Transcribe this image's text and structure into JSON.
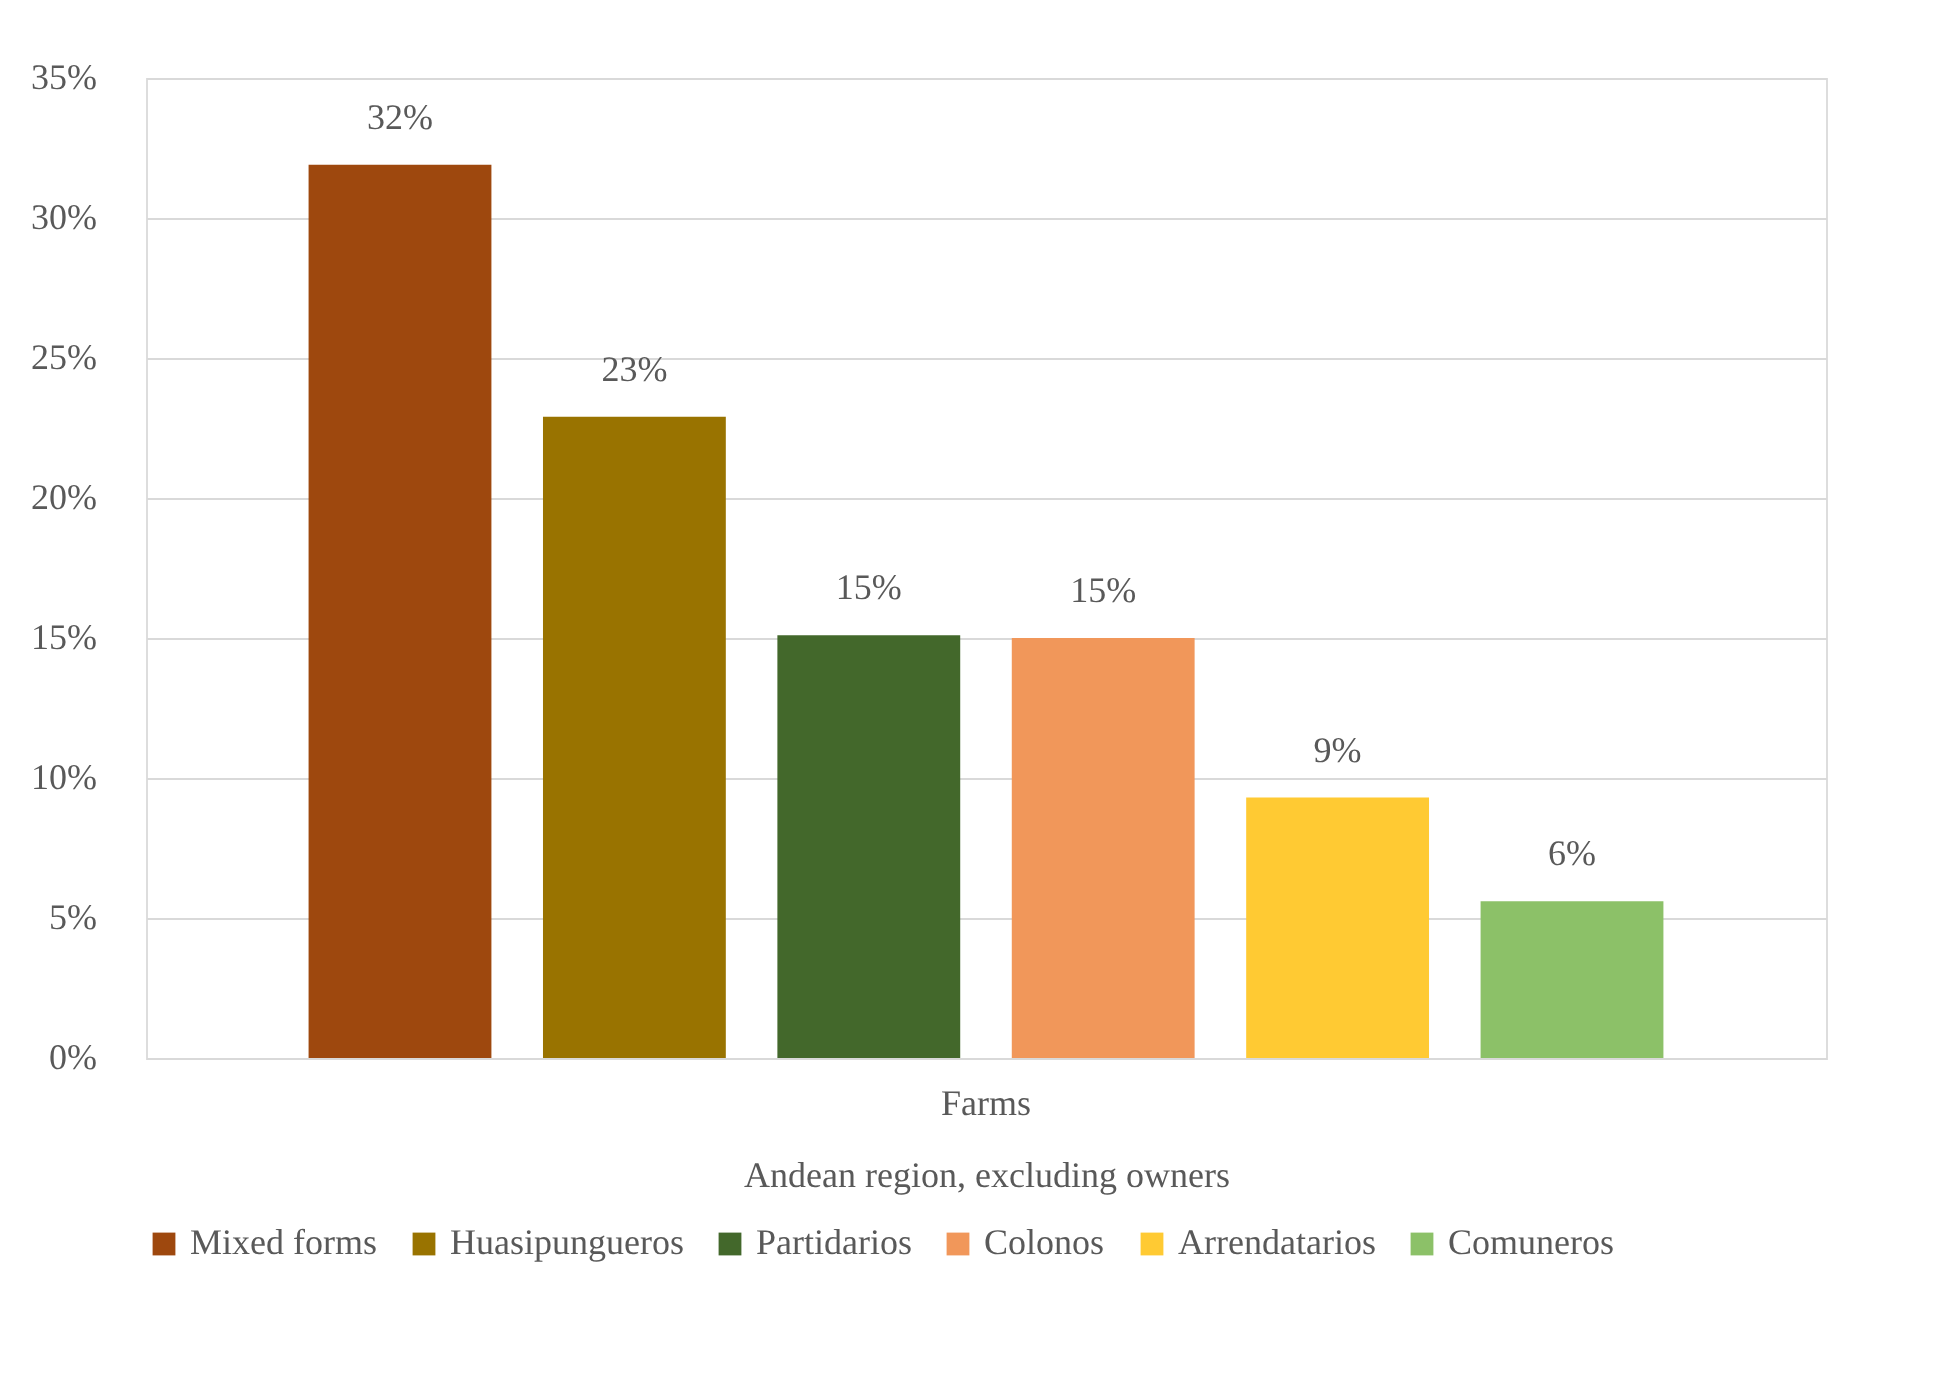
{
  "chart_data": {
    "type": "bar",
    "categories": [
      "Farms"
    ],
    "xlabel": "Andean region, excluding owners",
    "series": [
      {
        "name": "Mixed forms",
        "color": "#9e480e",
        "values": [
          31.9
        ],
        "value_labels": [
          "32%"
        ]
      },
      {
        "name": "Huasipungueros",
        "color": "#997300",
        "values": [
          22.9
        ],
        "value_labels": [
          "23%"
        ]
      },
      {
        "name": "Partidarios",
        "color": "#43682b",
        "values": [
          15.1
        ],
        "value_labels": [
          "15%"
        ]
      },
      {
        "name": "Colonos",
        "color": "#f1975a",
        "values": [
          15.0
        ],
        "value_labels": [
          "15%"
        ]
      },
      {
        "name": "Arrendatarios",
        "color": "#ffca33",
        "values": [
          9.3
        ],
        "value_labels": [
          "9%"
        ]
      },
      {
        "name": "Comuneros",
        "color": "#8cc168",
        "values": [
          5.6
        ],
        "value_labels": [
          "6%"
        ]
      }
    ],
    "ylim": [
      0,
      35
    ],
    "yticks": [
      {
        "value": 0,
        "label": "0%"
      },
      {
        "value": 5,
        "label": "5%"
      },
      {
        "value": 10,
        "label": "10%"
      },
      {
        "value": 15,
        "label": "15%"
      },
      {
        "value": 20,
        "label": "20%"
      },
      {
        "value": 25,
        "label": "25%"
      },
      {
        "value": 30,
        "label": "30%"
      },
      {
        "value": 35,
        "label": "35%"
      }
    ],
    "grid": "y",
    "legend": "bottom"
  }
}
